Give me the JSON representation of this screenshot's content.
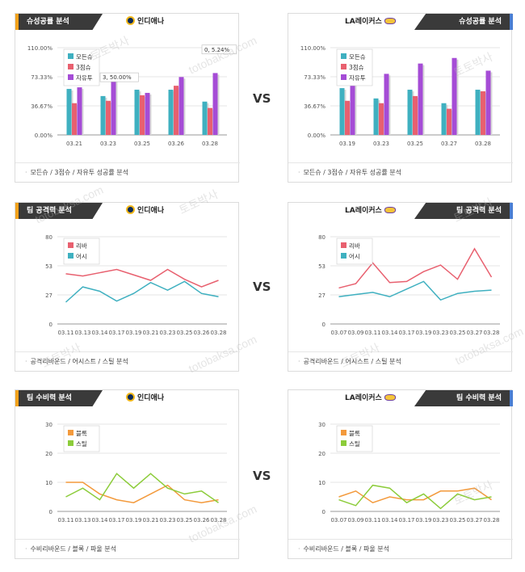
{
  "vs_label": "VS",
  "watermark": [
    "토토박사",
    "totobaksa.com"
  ],
  "panels": [
    {
      "id": "p1",
      "side": "left",
      "title": "슈성공률 분석",
      "team": "인디애나",
      "footer": "모든슈 / 3점슈 / 자유투 성공률 분석"
    },
    {
      "id": "p2",
      "side": "right",
      "title": "슈성공률 분석",
      "team": "LA레이커스",
      "footer": "모든슈 / 3점슈 / 자유투 성공률 분석"
    },
    {
      "id": "p3",
      "side": "left",
      "title": "팀 공격력 분석",
      "team": "인디애나",
      "footer": "공격리바운드 / 어시스트 / 스틸 분석"
    },
    {
      "id": "p4",
      "side": "right",
      "title": "팀 공격력 분석",
      "team": "LA레이커스",
      "footer": "공격리바운드 / 어시스트 / 스틸 분석"
    },
    {
      "id": "p5",
      "side": "left",
      "title": "팀 수비력 분석",
      "team": "인디애나",
      "footer": "수비리바운드 / 블록 / 파울 분석"
    },
    {
      "id": "p6",
      "side": "right",
      "title": "팀 수비력 분석",
      "team": "LA레이커스",
      "footer": "수비리바운드 / 블록 / 파울 분석"
    }
  ],
  "chart_data": [
    {
      "type": "bar",
      "categories": [
        "03.21",
        "03.23",
        "03.25",
        "03.26",
        "03.28"
      ],
      "yticks": [
        "0.00%",
        "36.67%",
        "73.33%",
        "110.00%"
      ],
      "ylim": [
        0,
        110
      ],
      "series": [
        {
          "name": "모든슈",
          "color": "#3fb0c0",
          "values": [
            58,
            49,
            57,
            57,
            42
          ]
        },
        {
          "name": "3점슈",
          "color": "#e8606f",
          "values": [
            40,
            43,
            50,
            62,
            34
          ]
        },
        {
          "name": "자유투",
          "color": "#a54cd6",
          "values": [
            60,
            75,
            53,
            73,
            78
          ]
        }
      ],
      "annotations": [
        {
          "text": "3, 50.00%",
          "category": "03.23",
          "value": 62
        },
        {
          "text": "0, 5.24%",
          "category": "03.28",
          "value": 97
        }
      ],
      "legend": "top-left"
    },
    {
      "type": "bar",
      "categories": [
        "03.19",
        "03.23",
        "03.25",
        "03.27",
        "03.28"
      ],
      "yticks": [
        "0.00%",
        "36.67%",
        "73.33%",
        "110.00%"
      ],
      "ylim": [
        0,
        110
      ],
      "series": [
        {
          "name": "모든슈",
          "color": "#3fb0c0",
          "values": [
            59,
            46,
            57,
            40,
            57
          ]
        },
        {
          "name": "3점슈",
          "color": "#e8606f",
          "values": [
            43,
            40,
            49,
            33,
            55
          ]
        },
        {
          "name": "자유투",
          "color": "#a54cd6",
          "values": [
            70,
            77,
            90,
            97,
            81
          ]
        }
      ],
      "legend": "top-left"
    },
    {
      "type": "line",
      "categories": [
        "03.11",
        "03.13",
        "03.14",
        "03.17",
        "03.19",
        "03.21",
        "03.23",
        "03.25",
        "03.26",
        "03.28"
      ],
      "yticks": [
        "0",
        "27",
        "53",
        "80"
      ],
      "ylim": [
        0,
        80
      ],
      "series": [
        {
          "name": "리바",
          "color": "#e8606f",
          "values": [
            46,
            44,
            47,
            50,
            45,
            40,
            50,
            41,
            34,
            40
          ]
        },
        {
          "name": "어시",
          "color": "#3fb0c0",
          "values": [
            20,
            34,
            30,
            21,
            28,
            38,
            31,
            39,
            28,
            25
          ]
        }
      ],
      "legend": "top-left"
    },
    {
      "type": "line",
      "categories": [
        "03.07",
        "03.09",
        "03.11",
        "03.14",
        "03.17",
        "03.19",
        "03.23",
        "03.25",
        "03.27",
        "03.28"
      ],
      "yticks": [
        "0",
        "27",
        "53",
        "80"
      ],
      "ylim": [
        0,
        80
      ],
      "series": [
        {
          "name": "리바",
          "color": "#e8606f",
          "values": [
            33,
            37,
            56,
            38,
            39,
            48,
            54,
            41,
            69,
            43
          ]
        },
        {
          "name": "어시",
          "color": "#3fb0c0",
          "values": [
            25,
            27,
            29,
            25,
            32,
            39,
            22,
            28,
            30,
            31
          ]
        }
      ],
      "legend": "top-left"
    },
    {
      "type": "line",
      "categories": [
        "03.11",
        "03.13",
        "03.14",
        "03.17",
        "03.19",
        "03.21",
        "03.23",
        "03.25",
        "03.26",
        "03.28"
      ],
      "yticks": [
        "0",
        "10",
        "20",
        "30"
      ],
      "ylim": [
        0,
        30
      ],
      "series": [
        {
          "name": "블록",
          "color": "#f39a3c",
          "values": [
            10,
            10,
            6,
            4,
            3,
            6,
            9,
            4,
            3,
            4
          ]
        },
        {
          "name": "스틸",
          "color": "#8ccc3a",
          "values": [
            5,
            8,
            4,
            13,
            8,
            13,
            8,
            6,
            7,
            3
          ]
        }
      ],
      "legend": "top-left"
    },
    {
      "type": "line",
      "categories": [
        "03.07",
        "03.09",
        "03.11",
        "03.14",
        "03.17",
        "03.19",
        "03.23",
        "03.25",
        "03.27",
        "03.28"
      ],
      "yticks": [
        "0",
        "10",
        "20",
        "30"
      ],
      "ylim": [
        0,
        30
      ],
      "series": [
        {
          "name": "블록",
          "color": "#f39a3c",
          "values": [
            5,
            7,
            3,
            5,
            4,
            4,
            7,
            7,
            8,
            4
          ]
        },
        {
          "name": "스틸",
          "color": "#8ccc3a",
          "values": [
            4,
            2,
            9,
            8,
            3,
            6,
            1,
            6,
            4,
            5
          ]
        }
      ],
      "legend": "top-left"
    }
  ]
}
